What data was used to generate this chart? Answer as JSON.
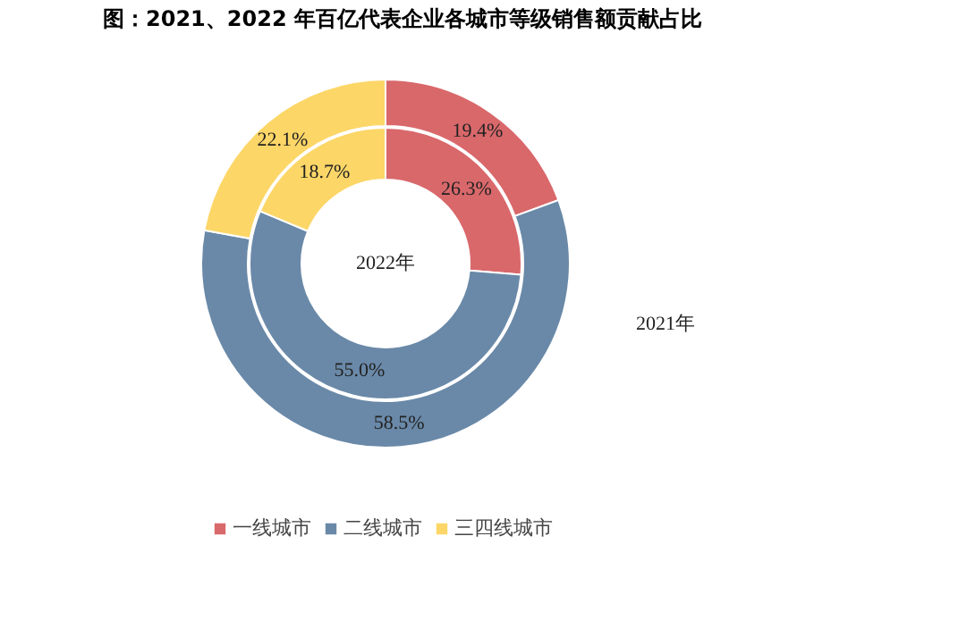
{
  "chart_data": {
    "type": "donut",
    "title": "图：2021、2022 年百亿代表企业各城市等级销售额贡献占比",
    "categories": [
      "一线城市",
      "二线城市",
      "三四线城市"
    ],
    "colors": [
      "#d9686b",
      "#6a89a8",
      "#fcd667"
    ],
    "series": [
      {
        "name": "2021年",
        "values": [
          19.4,
          58.5,
          22.1
        ],
        "value_labels": [
          "19.4%",
          "58.5%",
          "22.1%"
        ]
      },
      {
        "name": "2022年",
        "values": [
          26.3,
          55.0,
          18.7
        ],
        "value_labels": [
          "26.3%",
          "55.0%",
          "18.7%"
        ]
      }
    ],
    "legend": "bottom"
  }
}
